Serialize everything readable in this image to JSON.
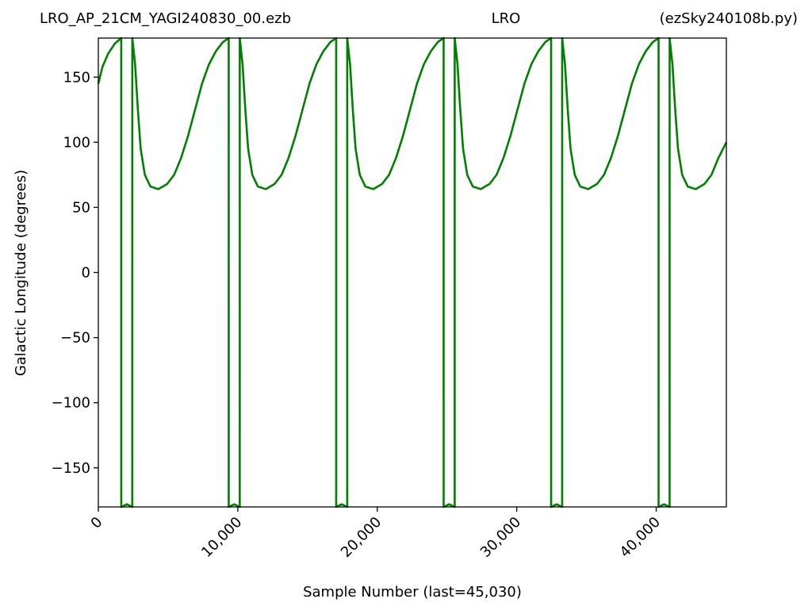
{
  "chart_data": {
    "type": "line",
    "title_left": "LRO_AP_21CM_YAGI240830_00.ezb",
    "title": "LRO",
    "title_right": "(ezSky240108b.py)",
    "x_label": "Sample Number (last=45,030)",
    "y_label": "Galactic Longitude (degrees)",
    "xlim": [
      0,
      45030
    ],
    "ylim": [
      -180,
      180
    ],
    "xticks": [
      0,
      {
        "value": 10000,
        "label": "10,000"
      },
      {
        "value": 20000,
        "label": "20,000"
      },
      {
        "value": 30000,
        "label": "30,000"
      },
      {
        "value": 40000,
        "label": "40,000"
      }
    ],
    "yticks": [
      {
        "value": -150,
        "label": "−150"
      },
      {
        "value": -100,
        "label": "−100"
      },
      {
        "value": -50,
        "label": "−50"
      },
      0,
      50,
      100,
      150
    ],
    "grid": false,
    "series": [
      {
        "color": "#008000",
        "x": [
          0,
          300,
          700,
          1200,
          1643,
          1644,
          2040,
          2435,
          2436,
          2636,
          2836,
          3036,
          3336,
          3736,
          4306,
          4936,
          5436,
          5936,
          6436,
          6936,
          7436,
          7936,
          8436,
          8936,
          9348,
          9349,
          9745,
          10140,
          10141,
          10341,
          10541,
          10741,
          11041,
          11441,
          12011,
          12641,
          13141,
          13641,
          14141,
          14641,
          15141,
          15641,
          16141,
          16641,
          17054,
          17055,
          17451,
          17846,
          17847,
          18047,
          18247,
          18447,
          18747,
          19147,
          19717,
          20347,
          20847,
          21347,
          21847,
          22347,
          22847,
          23347,
          23847,
          24347,
          24759,
          24760,
          25156,
          25551,
          25552,
          25752,
          25952,
          26152,
          26452,
          26852,
          27422,
          28052,
          28552,
          29052,
          29552,
          30052,
          30552,
          31052,
          31552,
          32052,
          32465,
          32466,
          32862,
          33257,
          33258,
          33458,
          33658,
          33858,
          34158,
          34558,
          35128,
          35758,
          36258,
          36758,
          37258,
          37758,
          38258,
          38758,
          39258,
          39758,
          40170,
          40171,
          40567,
          40962,
          40963,
          41163,
          41363,
          41563,
          41863,
          42263,
          42833,
          43463,
          43963,
          44463,
          45030
        ],
        "values": [
          145,
          158,
          168,
          176,
          180,
          -180,
          -178,
          -180,
          180,
          160,
          125,
          95,
          75,
          66,
          64,
          68,
          75,
          88,
          105,
          125,
          145,
          160,
          170,
          177,
          180,
          -180,
          -178,
          -180,
          180,
          160,
          125,
          95,
          75,
          66,
          64,
          68,
          75,
          88,
          105,
          125,
          145,
          160,
          170,
          177,
          180,
          -180,
          -178,
          -180,
          180,
          160,
          125,
          95,
          75,
          66,
          64,
          68,
          75,
          88,
          105,
          125,
          145,
          160,
          170,
          177,
          180,
          -180,
          -178,
          -180,
          180,
          160,
          125,
          95,
          75,
          66,
          64,
          68,
          75,
          88,
          105,
          125,
          145,
          160,
          170,
          177,
          180,
          -180,
          -178,
          -180,
          180,
          160,
          125,
          95,
          75,
          66,
          64,
          68,
          75,
          88,
          105,
          125,
          145,
          160,
          170,
          177,
          180,
          -180,
          -178,
          -180,
          180,
          160,
          125,
          95,
          75,
          66,
          64,
          68,
          75,
          88,
          100
        ]
      }
    ]
  }
}
